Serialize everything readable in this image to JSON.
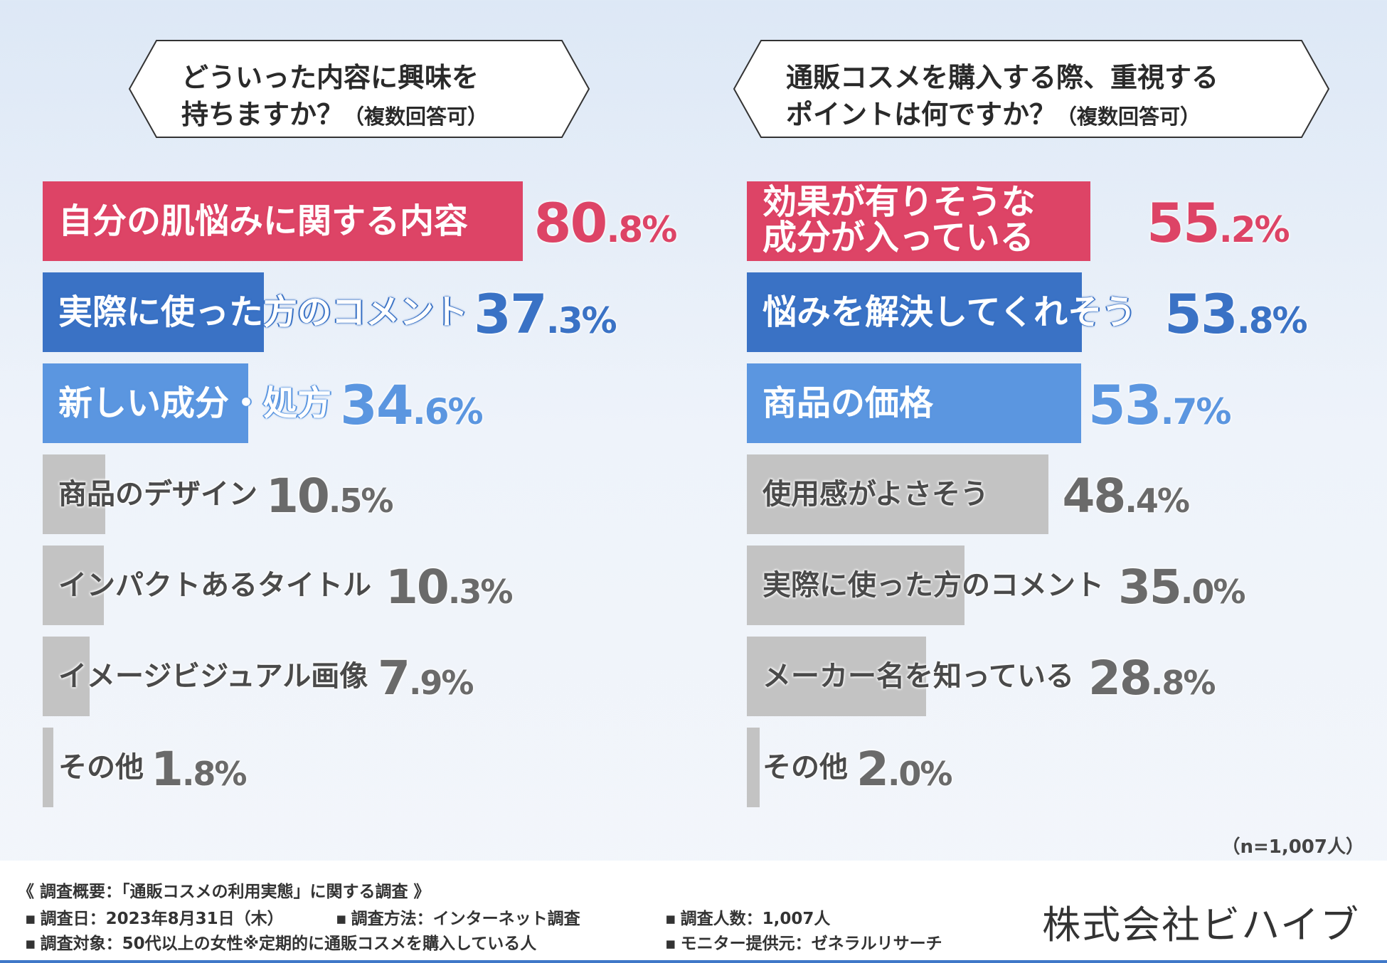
{
  "chart_data": [
    {
      "type": "bar",
      "orientation": "horizontal",
      "title_line1": "どういった内容に興味を",
      "title_line2": "持ちますか？",
      "title_note": "（複数回答可）",
      "unit": "%",
      "xlim": [
        0,
        100
      ],
      "categories": [
        "自分の肌悩みに関する内容",
        "実際に使った方のコメント",
        "新しい成分・処方",
        "商品のデザイン",
        "インパクトあるタイトル",
        "イメージビジュアル画像",
        "その他"
      ],
      "values": [
        80.8,
        37.3,
        34.6,
        10.5,
        10.3,
        7.9,
        1.8
      ],
      "int_labels": [
        "80",
        "37",
        "34",
        "10",
        "10",
        "7",
        "1"
      ],
      "dec_labels": [
        ".8%",
        ".3%",
        ".6%",
        ".5%",
        ".3%",
        ".9%",
        ".8%"
      ],
      "colors": [
        "#dd4466",
        "#3a72c5",
        "#5b96e0",
        "#c3c3c3",
        "#c3c3c3",
        "#c3c3c3",
        "#c3c3c3"
      ],
      "label_colors": [
        "#dd4466",
        "#3a72c5",
        "#5b96e0",
        "#6a6a6a",
        "#6a6a6a",
        "#6a6a6a",
        "#6a6a6a"
      ]
    },
    {
      "type": "bar",
      "orientation": "horizontal",
      "title_line1": "通販コスメを購入する際、重視する",
      "title_line2": "ポイントは何ですか？",
      "title_note": "（複数回答可）",
      "unit": "%",
      "xlim": [
        0,
        80
      ],
      "categories": [
        "効果が有りそうな成分が入っている",
        "悩みを解決してくれそう",
        "商品の価格",
        "使用感がよさそう",
        "実際に使った方のコメント",
        "メーカー名を知っている",
        "その他"
      ],
      "category_lines": [
        [
          "効果が有りそうな",
          "成分が入っている"
        ],
        [
          "悩みを解決してくれそう"
        ],
        [
          "商品の価格"
        ],
        [
          "使用感がよさそう"
        ],
        [
          "実際に使った方のコメント"
        ],
        [
          "メーカー名を知っている"
        ],
        [
          "その他"
        ]
      ],
      "values": [
        55.2,
        53.8,
        53.7,
        48.4,
        35.0,
        28.8,
        2.0
      ],
      "int_labels": [
        "55",
        "53",
        "53",
        "48",
        "35",
        "28",
        "2"
      ],
      "dec_labels": [
        ".2%",
        ".8%",
        ".7%",
        ".4%",
        ".0%",
        ".8%",
        ".0%"
      ],
      "colors": [
        "#dd4466",
        "#3a72c5",
        "#5b96e0",
        "#c3c3c3",
        "#c3c3c3",
        "#c3c3c3",
        "#c3c3c3"
      ],
      "label_colors": [
        "#dd4466",
        "#3a72c5",
        "#5b96e0",
        "#6a6a6a",
        "#6a6a6a",
        "#6a6a6a",
        "#6a6a6a"
      ]
    }
  ],
  "sample_note": "（n=1,007人）",
  "footer": {
    "title": "《 調査概要：「通販コスメの利用実態」に関する調査 》",
    "survey_date": "調査日：2023年8月31日（木）",
    "survey_method": "調査方法：インターネット調査",
    "survey_count": "調査人数：1,007人",
    "survey_target": "調査対象：50代以上の女性※定期的に通販コスメを購入している人",
    "monitor": "モニター提供元：ゼネラルリサーチ",
    "company": "株式会社ビハイブ"
  }
}
